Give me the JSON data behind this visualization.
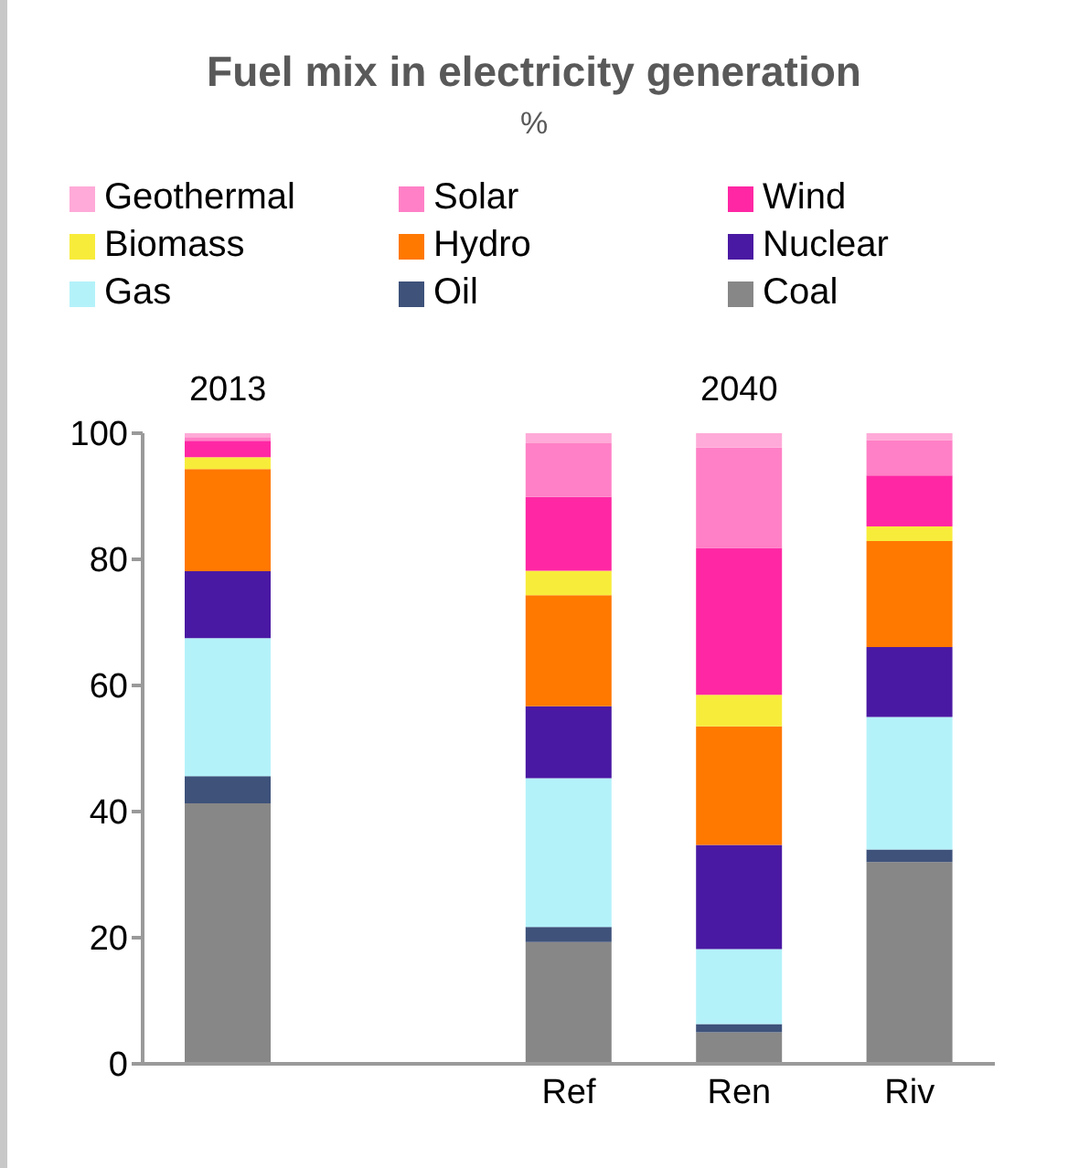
{
  "chart_data": {
    "type": "bar",
    "title": "Fuel mix in electricity generation",
    "subtitle": "%",
    "stacked": true,
    "legend": "top",
    "categories": [
      null,
      null,
      "Ref",
      "Ren",
      "Riv"
    ],
    "ylim": [
      0,
      100
    ],
    "yticks": [
      0,
      20,
      40,
      60,
      80,
      100
    ],
    "grid": false,
    "annotations": [
      "2013",
      "2040"
    ],
    "series": [
      {
        "name": "Coal",
        "color": "#878787",
        "values": [
          41.3,
          null,
          19.3,
          5.0,
          32.0
        ]
      },
      {
        "name": "Oil",
        "color": "#3e527a",
        "values": [
          4.3,
          null,
          2.4,
          1.3,
          2.0
        ]
      },
      {
        "name": "Gas",
        "color": "#b4f2fa",
        "values": [
          21.9,
          null,
          23.6,
          11.9,
          21.0
        ]
      },
      {
        "name": "Nuclear",
        "color": "#4a19a3",
        "values": [
          10.6,
          null,
          11.4,
          16.5,
          11.1
        ]
      },
      {
        "name": "Hydro",
        "color": "#ff7800",
        "values": [
          16.2,
          null,
          17.6,
          18.8,
          16.8
        ]
      },
      {
        "name": "Biomass",
        "color": "#f8ec3b",
        "values": [
          1.9,
          null,
          3.9,
          5.0,
          2.3
        ]
      },
      {
        "name": "Wind",
        "color": "#ff27a4",
        "values": [
          2.6,
          null,
          11.7,
          23.3,
          8.1
        ]
      },
      {
        "name": "Solar",
        "color": "#ff80c6",
        "values": [
          0.6,
          null,
          8.5,
          15.9,
          5.6
        ]
      },
      {
        "name": "Geothermal",
        "color": "#ffaad8",
        "values": [
          0.6,
          null,
          1.6,
          2.3,
          1.1
        ]
      }
    ]
  }
}
